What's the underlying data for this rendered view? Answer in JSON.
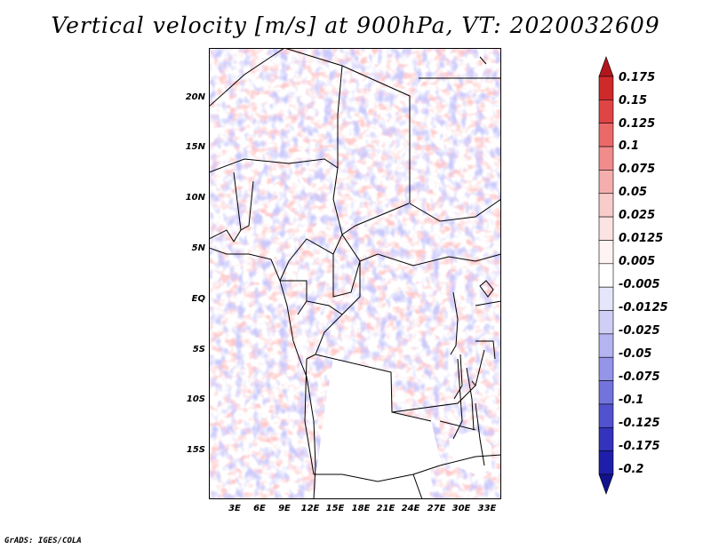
{
  "title": "Vertical velocity [m/s] at 900hPa, VT: 2020032609",
  "credit": "GrADS: IGES/COLA",
  "y_axis": {
    "labels": [
      "20N",
      "15N",
      "10N",
      "5N",
      "EQ",
      "5S",
      "10S",
      "15S"
    ],
    "lat": [
      20,
      15,
      10,
      5,
      0,
      -5,
      -10,
      -15
    ],
    "range": [
      -19.5,
      25
    ]
  },
  "x_axis": {
    "labels": [
      "3E",
      "6E",
      "9E",
      "12E",
      "15E",
      "18E",
      "21E",
      "24E",
      "27E",
      "30E",
      "33E"
    ],
    "lon": [
      3,
      6,
      9,
      12,
      15,
      18,
      21,
      24,
      27,
      30,
      33
    ],
    "range": [
      0.5,
      35
    ]
  },
  "colorbar": {
    "labels": [
      "0.175",
      "0.15",
      "0.125",
      "0.1",
      "0.075",
      "0.05",
      "0.025",
      "0.0125",
      "0.005",
      "-0.005",
      "-0.0125",
      "-0.025",
      "-0.05",
      "-0.075",
      "-0.1",
      "-0.125",
      "-0.175",
      "-0.2"
    ],
    "colors": [
      "#b0171c",
      "#cf2a2a",
      "#e04545",
      "#ea6a6a",
      "#f08c8c",
      "#f5aeae",
      "#f9cccc",
      "#fce3e3",
      "#fff3f3",
      "#ffffff",
      "#e6e6fa",
      "#cfcff6",
      "#b4b4f0",
      "#9494e8",
      "#7373de",
      "#5252cf",
      "#3333bd",
      "#1e1eaa",
      "#12128f"
    ]
  },
  "colors": {
    "positive": "#e36060",
    "negative": "#6e6ee0",
    "border": "#000000"
  }
}
